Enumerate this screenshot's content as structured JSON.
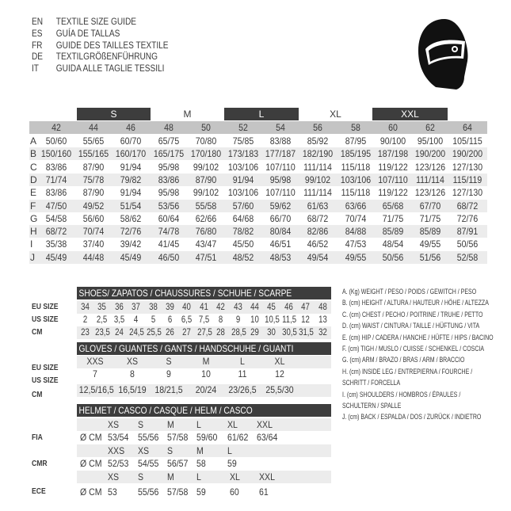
{
  "titles": [
    {
      "code": "EN",
      "text": "TEXTILE SIZE GUIDE"
    },
    {
      "code": "ES",
      "text": "GUÍA DE TALLAS"
    },
    {
      "code": "FR",
      "text": "GUIDE DES TAILLES TEXTILE"
    },
    {
      "code": "DE",
      "text": "TEXTILGRÖßENFÜHRUNG"
    },
    {
      "code": "IT",
      "text": "GUIDA ALLE TAGLIE TESSILI"
    }
  ],
  "logo": {
    "icon": "helmet-icon"
  },
  "textile": {
    "bands": [
      "S",
      "M",
      "L",
      "XL",
      "XXL"
    ],
    "sizes": [
      "42",
      "44",
      "46",
      "48",
      "50",
      "52",
      "54",
      "56",
      "58",
      "60",
      "62",
      "64"
    ],
    "rows": [
      {
        "label": "A",
        "values": [
          "50/60",
          "55/65",
          "60/70",
          "65/75",
          "70/80",
          "75/85",
          "83/88",
          "85/92",
          "87/95",
          "90/100",
          "95/100",
          "105/115"
        ]
      },
      {
        "label": "B",
        "values": [
          "150/160",
          "155/165",
          "160/170",
          "165/175",
          "170/180",
          "173/183",
          "177/187",
          "182/190",
          "185/195",
          "187/198",
          "190/200",
          "190/200"
        ]
      },
      {
        "label": "C",
        "values": [
          "83/86",
          "87/90",
          "91/94",
          "95/98",
          "99/102",
          "103/106",
          "107/110",
          "111/114",
          "115/118",
          "119/122",
          "123/126",
          "127/130"
        ]
      },
      {
        "label": "D",
        "values": [
          "71/74",
          "75/78",
          "79/82",
          "83/86",
          "87/90",
          "91/94",
          "95/98",
          "99/102",
          "103/106",
          "107/110",
          "111/114",
          "115/119"
        ]
      },
      {
        "label": "E",
        "values": [
          "83/86",
          "87/90",
          "91/94",
          "95/98",
          "99/102",
          "103/106",
          "107/110",
          "111/114",
          "115/118",
          "119/122",
          "123/126",
          "127/130"
        ]
      },
      {
        "label": "F",
        "values": [
          "47/50",
          "49/52",
          "51/54",
          "53/56",
          "55/58",
          "57/60",
          "59/62",
          "61/63",
          "63/66",
          "65/68",
          "67/70",
          "68/72"
        ]
      },
      {
        "label": "G",
        "values": [
          "54/58",
          "56/60",
          "58/62",
          "60/64",
          "62/66",
          "64/68",
          "66/70",
          "68/72",
          "70/74",
          "71/75",
          "71/75",
          "72/76"
        ]
      },
      {
        "label": "H",
        "values": [
          "68/72",
          "70/74",
          "72/76",
          "74/78",
          "76/80",
          "78/82",
          "80/84",
          "82/86",
          "84/88",
          "85/89",
          "85/89",
          "87/91"
        ]
      },
      {
        "label": "I",
        "values": [
          "35/38",
          "37/40",
          "39/42",
          "41/45",
          "43/47",
          "45/50",
          "46/51",
          "46/52",
          "47/53",
          "48/54",
          "49/55",
          "50/56"
        ]
      },
      {
        "label": "J",
        "values": [
          "45/49",
          "44/48",
          "45/49",
          "46/50",
          "47/51",
          "48/52",
          "48/53",
          "49/54",
          "49/55",
          "50/56",
          "51/56",
          "52/58"
        ]
      }
    ]
  },
  "shoes": {
    "title": "SHOES/ ZAPATOS / CHAUSSURES / SCHUHE / SCARPE",
    "rows": [
      {
        "label": "EU SIZE",
        "values": [
          "34",
          "35",
          "36",
          "37",
          "38",
          "39",
          "40",
          "41",
          "42",
          "43",
          "44",
          "45",
          "46",
          "47",
          "48"
        ]
      },
      {
        "label": "US SIZE",
        "values": [
          "2",
          "2,5",
          "3,5",
          "4",
          "5",
          "6",
          "6,5",
          "7,5",
          "8",
          "9",
          "10",
          "10,5",
          "11,5",
          "12",
          "13"
        ]
      },
      {
        "label": "CM",
        "values": [
          "23",
          "23,5",
          "24",
          "24,5",
          "25,5",
          "26",
          "27",
          "27,5",
          "28",
          "28,5",
          "29",
          "30",
          "30,5",
          "31,5",
          "32"
        ]
      }
    ]
  },
  "gloves": {
    "title": "GLOVES / GUANTES / GANTS / HANDSCHUHE / GUANTI",
    "rows": [
      {
        "label": "EU SIZE",
        "values": [
          "XXS",
          "XS",
          "S",
          "M",
          "L",
          "XL"
        ]
      },
      {
        "label": "US SIZE",
        "values": [
          "7",
          "8",
          "9",
          "10",
          "11",
          "12"
        ]
      },
      {
        "label": "CM",
        "values": [
          "12,5/16,5",
          "16,5/19",
          "18/21,5",
          "20/24",
          "23/26,5",
          "25,5/30"
        ]
      }
    ]
  },
  "helmet": {
    "title": "HELMET / CASCO / CASQUE / HELM / CASCO",
    "groups": [
      {
        "label": "FIA",
        "unit": "Ø CM",
        "sizes": [
          "XS",
          "S",
          "M",
          "L",
          "XL",
          "XXL"
        ],
        "values": [
          "53/54",
          "55/56",
          "57/58",
          "59/60",
          "61/62",
          "63/64"
        ]
      },
      {
        "label": "CMR",
        "unit": "Ø CM",
        "sizes": [
          "XXS",
          "XS",
          "S",
          "M",
          "L"
        ],
        "values": [
          "52/53",
          "54/55",
          "56/57",
          "58",
          "59"
        ]
      },
      {
        "label": "ECE",
        "unit": "Ø CM",
        "sizes": [
          "XS",
          "S",
          "M",
          "L",
          "XL",
          "XXL"
        ],
        "values": [
          "53",
          "55/56",
          "57/58",
          "59",
          "60",
          "61"
        ]
      }
    ]
  },
  "legend": [
    "A. (Kg) WEIGHT / PESO / POIDS / GEWITCH / PESO",
    "B. (cm) HEIGHT / ALTURA / HAUTEUR / HÖHE / ALTEZZA",
    "C. (cm) CHEST / PECHO / POITRINE / TRUHE / PETTO",
    "D. (cm) WAIST / CINTURA / TAILLE / HÜFTUNG / VITA",
    "E. (cm) HIP / CADERA / HANCHE / HÜFTE / HIPS /  BACINO",
    "F. (cm) TIGH / MUSLO / CUISSE / SCHENKEL / COSCIA",
    "G. (cm) ARM  / BRAZO / BRAS / ARM / BRACCIO",
    "H. (cm) INSIDE LEG / ENTREPIERNA / FOURCHE /",
    "SCHRITT / FORCELLA",
    "I. (cm) SHOULDERS / HOMBROS / ÉPAULES /",
    "SCHULTERN / SPALLE",
    "J. (cm) BACK / ESPALDA / DOS / ZURÜCK / INDIETRO"
  ]
}
